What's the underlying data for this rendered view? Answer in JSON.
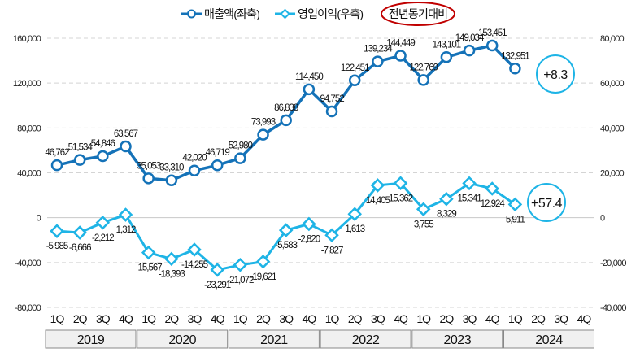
{
  "chart_data": {
    "type": "line",
    "legend": {
      "position": "top",
      "items": [
        "매출액(좌축)",
        "영업이익(우축)",
        "전년동기대비"
      ]
    },
    "quarters": [
      "1Q",
      "2Q",
      "3Q",
      "4Q",
      "1Q",
      "2Q",
      "3Q",
      "4Q",
      "1Q",
      "2Q",
      "3Q",
      "4Q",
      "1Q",
      "2Q",
      "3Q",
      "4Q",
      "1Q",
      "2Q",
      "3Q",
      "4Q",
      "1Q",
      "2Q",
      "3Q",
      "4Q"
    ],
    "years": [
      "2019",
      "2020",
      "2021",
      "2022",
      "2023",
      "2024"
    ],
    "left_axis": {
      "ticks": [
        "160,000",
        "120,000",
        "80,000",
        "40,000",
        "0",
        "-40,000",
        "-80,000"
      ],
      "range": [
        -80000,
        160000
      ]
    },
    "right_axis": {
      "ticks": [
        "80,000",
        "60,000",
        "40,000",
        "20,000",
        "0",
        "-20,000",
        "-40,000"
      ],
      "range": [
        -40000,
        80000
      ]
    },
    "grid": true,
    "series": [
      {
        "name": "매출액(좌축)",
        "axis": "left",
        "color": "#1472B8",
        "values": [
          46762,
          51534,
          54846,
          63567,
          35053,
          33310,
          42020,
          46719,
          52980,
          73993,
          86838,
          114450,
          94752,
          122451,
          139234,
          144449,
          122769,
          143101,
          149034,
          153451,
          132951
        ],
        "labels": [
          "46,762",
          "51,534",
          "54,846",
          "63,567",
          "35,053",
          "33,310",
          "42,020",
          "46,719",
          "52,980",
          "73,993",
          "86,838",
          "114,450",
          "94,752",
          "122,451",
          "139,234",
          "144,449",
          "122,769",
          "143,101",
          "149,034",
          "153,451",
          "132,951"
        ]
      },
      {
        "name": "영업이익(우축)",
        "axis": "right",
        "color": "#1EB4E6",
        "values": [
          -5985,
          -6666,
          -2212,
          1312,
          -15567,
          -18393,
          -14255,
          -23291,
          -21072,
          -19621,
          -5583,
          -2820,
          -7827,
          1613,
          14405,
          15362,
          3755,
          8329,
          15341,
          12924,
          5911
        ],
        "labels": [
          "-5,985",
          "-6,666",
          "-2,212",
          "1,312",
          "-15,567",
          "-18,393",
          "-14,255",
          "-23,291",
          "-21,072",
          "-19,621",
          "-5,583",
          "-2,820",
          "-7,827",
          "1,613",
          "14,405",
          "15,362",
          "3,755",
          "8,329",
          "15,341",
          "12,924",
          "5,911"
        ]
      }
    ],
    "annotations": [
      {
        "text": "+8.3",
        "series": "매출액(좌축)"
      },
      {
        "text": "+57.4",
        "series": "영업이익(우축)"
      }
    ]
  }
}
